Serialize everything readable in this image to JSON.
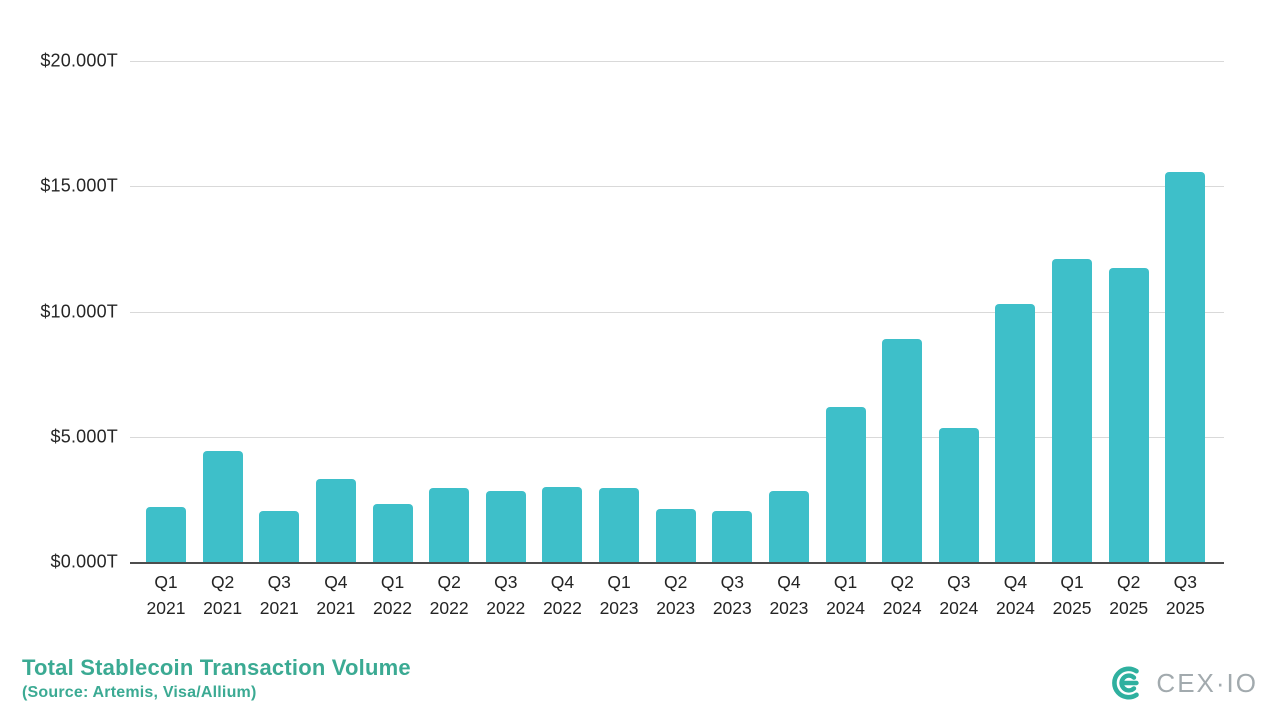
{
  "chart_data": {
    "type": "bar",
    "title": "Total Stablecoin Transaction Volume",
    "source_note": "(Source: Artemis, Visa/Allium)",
    "categories": [
      "Q1 2021",
      "Q2 2021",
      "Q3 2021",
      "Q4 2021",
      "Q1 2022",
      "Q2 2022",
      "Q3 2022",
      "Q4 2022",
      "Q1 2023",
      "Q2 2023",
      "Q3 2023",
      "Q4 2023",
      "Q1 2024",
      "Q2 2024",
      "Q3 2024",
      "Q4 2024",
      "Q1 2025",
      "Q2 2025",
      "Q3 2025"
    ],
    "values": [
      2.2,
      4.45,
      2.05,
      3.3,
      2.3,
      2.95,
      2.85,
      3.0,
      2.95,
      2.1,
      2.05,
      2.85,
      6.2,
      8.9,
      5.35,
      10.3,
      12.1,
      11.75,
      15.55
    ],
    "unit": "trillions USD",
    "y_ticks_bottom_up": [
      "$0.000T",
      "$5.000T",
      "$10.000T",
      "$15.000T",
      "$20.000T"
    ],
    "ylim": [
      0,
      20
    ],
    "grid": "horizontal-on",
    "legend": "none",
    "bar_color": "#3EBFC9"
  },
  "footer": {
    "title": "Total Stablecoin Transaction Volume",
    "source": "(Source: Artemis, Visa/Allium)",
    "accent_color": "#3BAA93"
  },
  "logo": {
    "text": "CEX·IO",
    "mark_color": "#2FB09F",
    "text_color": "#A2AAAE"
  }
}
